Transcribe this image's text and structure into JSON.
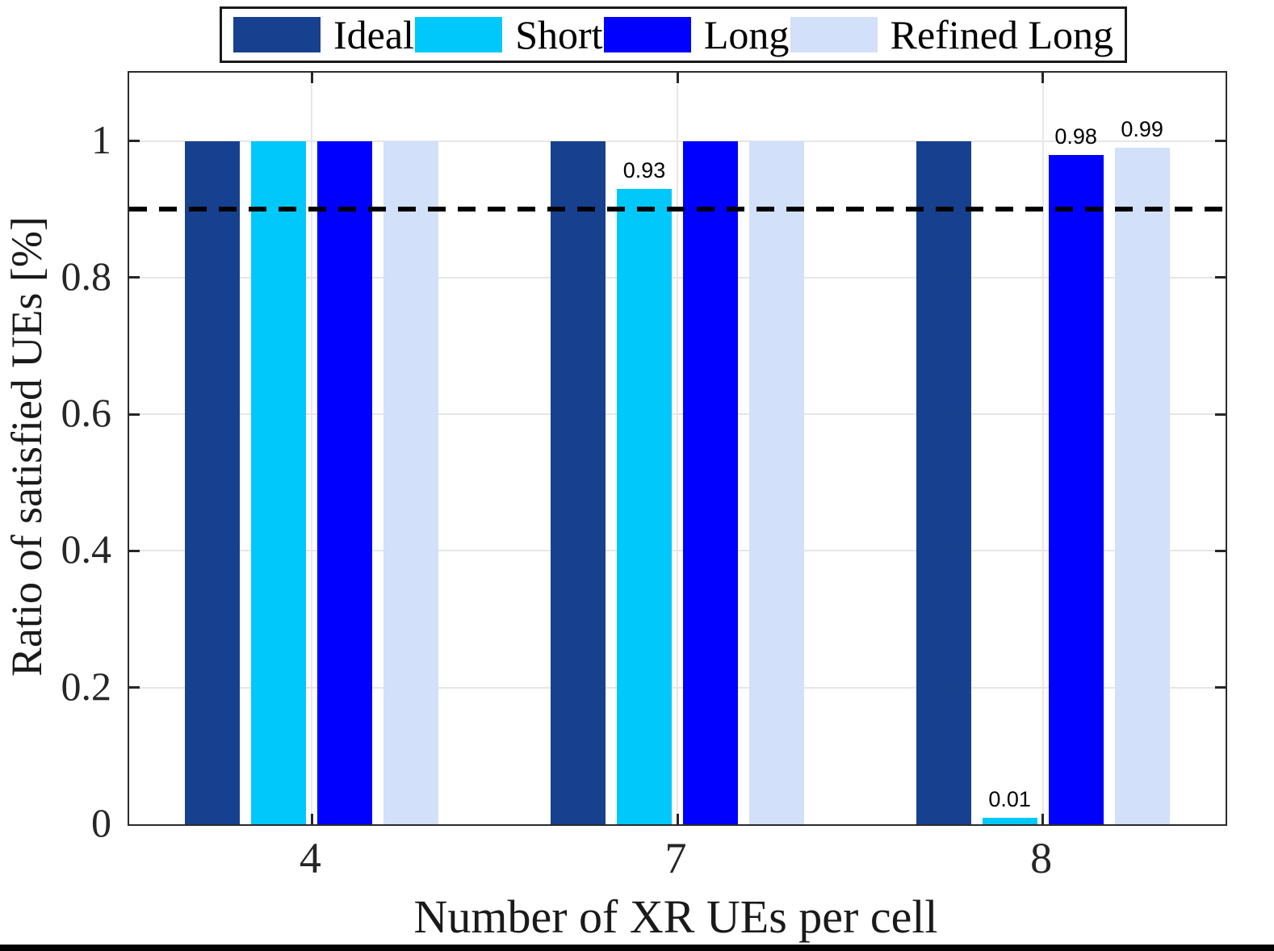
{
  "chart_data": {
    "type": "bar",
    "title": "",
    "xlabel": "Number of XR UEs per cell",
    "ylabel": "Ratio of satisfied UEs [%]",
    "categories": [
      "4",
      "7",
      "8"
    ],
    "series": [
      {
        "name": "Ideal",
        "color": "#17418F",
        "values": [
          1,
          1,
          1
        ],
        "labels": [
          "",
          "",
          ""
        ]
      },
      {
        "name": "Short",
        "color": "#00C8FA",
        "values": [
          1,
          0.93,
          0.01
        ],
        "labels": [
          "",
          "0.93",
          "0.01"
        ]
      },
      {
        "name": "Long",
        "color": "#0000FE",
        "values": [
          1,
          1,
          0.98
        ],
        "labels": [
          "",
          "",
          "0.98"
        ]
      },
      {
        "name": "Refined Long",
        "color": "#D2E0F9",
        "values": [
          1,
          1,
          0.99
        ],
        "labels": [
          "",
          "",
          "0.99"
        ]
      }
    ],
    "yticks": [
      0,
      0.2,
      0.4,
      0.6,
      0.8,
      1
    ],
    "ytick_labels": [
      "0",
      "0.2",
      "0.4",
      "0.6",
      "0.8",
      "1"
    ],
    "ylim": [
      0,
      1.1
    ],
    "threshold": {
      "value": 0.9,
      "style": "dashed",
      "color": "#000000"
    },
    "grid": true,
    "legend_position": "top"
  },
  "colors": {
    "grid": "#E6E6E6",
    "axis_frame": "#2B2B2B",
    "threshold": "#000000",
    "background": "#FFFFFF",
    "bottom_rule": "#000000"
  }
}
